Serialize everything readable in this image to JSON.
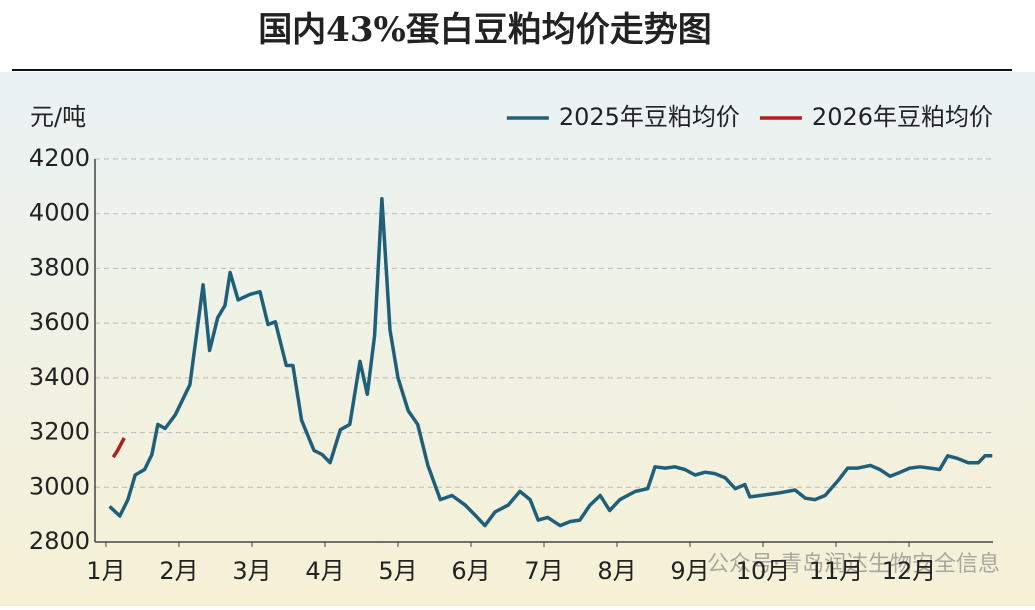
{
  "chart_data": {
    "type": "line",
    "title": "国内43%蛋白豆粕均价走势图",
    "y_label": "元/吨",
    "watermark": "公众号·青岛润达生物安全信息",
    "xlim": [
      0.85,
      13.15
    ],
    "xticks": [
      {
        "value": 1,
        "label": "1月"
      },
      {
        "value": 2,
        "label": "2月"
      },
      {
        "value": 3,
        "label": "3月"
      },
      {
        "value": 4,
        "label": "4月"
      },
      {
        "value": 5,
        "label": "5月"
      },
      {
        "value": 6,
        "label": "6月"
      },
      {
        "value": 7,
        "label": "7月"
      },
      {
        "value": 8,
        "label": "8月"
      },
      {
        "value": 9,
        "label": "9月"
      },
      {
        "value": 10,
        "label": "10月"
      },
      {
        "value": 11,
        "label": "11月"
      },
      {
        "value": 12,
        "label": "12月"
      }
    ],
    "ylim": [
      2800,
      4200
    ],
    "yticks": [
      2800,
      3000,
      3200,
      3400,
      3600,
      3800,
      4000,
      4200
    ],
    "grid": true,
    "legend": "top-right",
    "series": [
      {
        "name": "2025年豆粕均价",
        "color": "#1f5f7a",
        "x": [
          1.05,
          1.19,
          1.3,
          1.4,
          1.53,
          1.63,
          1.71,
          1.81,
          1.95,
          2.15,
          2.33,
          2.42,
          2.53,
          2.63,
          2.7,
          2.81,
          2.97,
          3.11,
          3.22,
          3.32,
          3.47,
          3.56,
          3.68,
          3.85,
          3.96,
          4.07,
          4.21,
          4.34,
          4.48,
          4.58,
          4.68,
          4.78,
          4.89,
          5.0,
          5.14,
          5.27,
          5.41,
          5.58,
          5.74,
          5.92,
          6.05,
          6.19,
          6.33,
          6.51,
          6.67,
          6.81,
          6.92,
          7.05,
          7.22,
          7.36,
          7.49,
          7.63,
          7.77,
          7.9,
          8.04,
          8.25,
          8.42,
          8.52,
          8.66,
          8.79,
          8.93,
          9.07,
          9.21,
          9.34,
          9.48,
          9.62,
          9.75,
          9.82,
          9.96,
          10.1,
          10.23,
          10.44,
          10.58,
          10.71,
          10.85,
          11.03,
          11.16,
          11.3,
          11.47,
          11.6,
          11.74,
          11.88,
          12.01,
          12.15,
          12.29,
          12.42,
          12.53,
          12.67,
          12.81,
          12.95,
          13.04,
          13.14
        ],
        "values": [
          2930,
          2895,
          2955,
          3045,
          3065,
          3120,
          3230,
          3215,
          3265,
          3375,
          3740,
          3500,
          3620,
          3665,
          3785,
          3685,
          3705,
          3715,
          3595,
          3605,
          3445,
          3445,
          3245,
          3135,
          3120,
          3090,
          3210,
          3230,
          3460,
          3340,
          3555,
          4055,
          3575,
          3400,
          3280,
          3230,
          3080,
          2955,
          2970,
          2935,
          2900,
          2860,
          2910,
          2935,
          2985,
          2955,
          2880,
          2890,
          2860,
          2875,
          2880,
          2935,
          2970,
          2915,
          2955,
          2985,
          2995,
          3075,
          3070,
          3075,
          3065,
          3045,
          3055,
          3050,
          3035,
          2995,
          3010,
          2965,
          2970,
          2975,
          2980,
          2990,
          2960,
          2955,
          2970,
          3025,
          3070,
          3070,
          3080,
          3065,
          3040,
          3055,
          3070,
          3075,
          3070,
          3065,
          3115,
          3105,
          3090,
          3090,
          3115,
          3115
        ]
      },
      {
        "name": "2026年豆粕均价",
        "color": "#b01e1e",
        "x": [
          1.1,
          1.16,
          1.25
        ],
        "values": [
          3110,
          3135,
          3180
        ]
      }
    ]
  }
}
